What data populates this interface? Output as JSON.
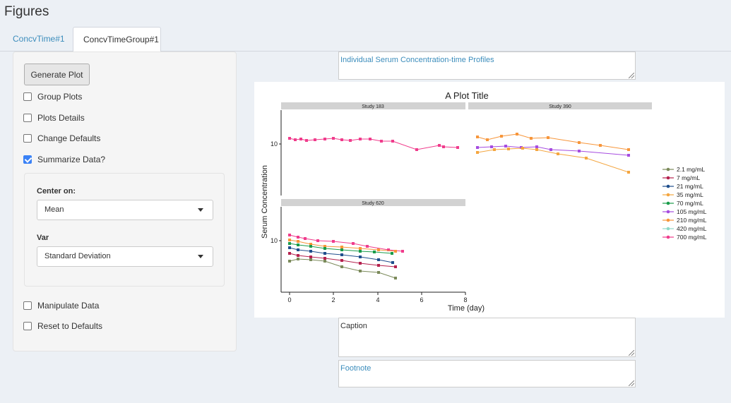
{
  "page": {
    "title": "Figures"
  },
  "tabs": [
    {
      "label": "ConcvTime#1",
      "active": false
    },
    {
      "label": "ConcvTimeGroup#1",
      "active": true
    }
  ],
  "sidebar": {
    "generate_label": "Generate Plot",
    "checks": {
      "group_plots": {
        "label": "Group Plots",
        "checked": false
      },
      "plots_details": {
        "label": "Plots Details",
        "checked": false
      },
      "change_defaults": {
        "label": "Change Defaults",
        "checked": false
      },
      "summarize": {
        "label": "Summarize Data?",
        "checked": true
      },
      "manipulate": {
        "label": "Manipulate Data",
        "checked": false
      },
      "reset": {
        "label": "Reset to Defaults",
        "checked": false
      }
    },
    "center_label": "Center on:",
    "center_value": "Mean",
    "var_label": "Var",
    "var_value": "Standard Deviation"
  },
  "title_field": {
    "value": "Individual Serum Concentration-time Profiles"
  },
  "caption_field": {
    "placeholder": "Caption",
    "value": ""
  },
  "footnote_field": {
    "value": "Footnote"
  },
  "figure": {
    "title": "A Plot Title",
    "xlabel": "Time (day)",
    "ylabel": "Serum Concentration",
    "y_tick": "10",
    "x_ticks": [
      "0",
      "2",
      "4",
      "6",
      "8"
    ],
    "panels": [
      "Study 183",
      "Study 390",
      "Study 620"
    ],
    "legend": [
      {
        "label": "2.1 mg/mL",
        "color": "#7b8a5a"
      },
      {
        "label": "7 mg/mL",
        "color": "#b5214e"
      },
      {
        "label": "21 mg/mL",
        "color": "#1f4e8c"
      },
      {
        "label": "35 mg/mL",
        "color": "#f4a640"
      },
      {
        "label": "70 mg/mL",
        "color": "#1a9c4a"
      },
      {
        "label": "105 mg/mL",
        "color": "#a64ce0"
      },
      {
        "label": "210 mg/mL",
        "color": "#f7963b"
      },
      {
        "label": "420 mg/mL",
        "color": "#8fd9c8"
      },
      {
        "label": "700 mg/mL",
        "color": "#f03c8c"
      }
    ]
  }
}
